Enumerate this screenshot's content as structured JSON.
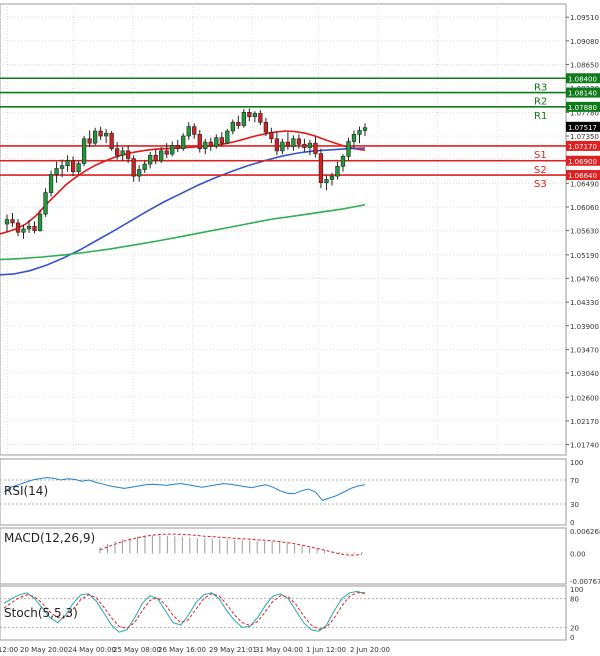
{
  "chart_data": {
    "type": "candlestick",
    "instrument_note": "",
    "colors": {
      "bull": "#1f9a3a",
      "bear": "#d42020",
      "ma_fast": "#e01818",
      "ma_mid": "#3553c8",
      "ma_slow": "#2fae52",
      "resistance": "#0f7a1a",
      "support": "#e02020",
      "rsi": "#1e7fd0",
      "macd_hist": "#9a9a9a",
      "macd_signal": "#e02020",
      "stoch_main": "#20a9b0",
      "stoch_signal": "#e02020",
      "grid": "#dcdcdc"
    },
    "price_axis": {
      "min": 1.0155,
      "max": 1.0975,
      "ticks": [
        "1.09510",
        "1.09080",
        "1.08650",
        "1.08220",
        "1.07780",
        "1.07350",
        "1.06920",
        "1.06490",
        "1.06060",
        "1.05630",
        "1.05190",
        "1.04760",
        "1.04330",
        "1.03900",
        "1.03470",
        "1.03040",
        "1.02600",
        "1.02170",
        "1.01740"
      ]
    },
    "time_axis": {
      "labels": [
        "12:00",
        "20 May 20:00",
        "24 May 00:00",
        "25 May 08:00",
        "26 May 16:00",
        "29 May 21:01",
        "31 May 04:00",
        "1 Jun 12:00",
        "2 Jun 20:00"
      ],
      "label_bars": [
        0,
        10,
        19,
        28,
        37,
        47,
        56,
        65,
        74
      ]
    },
    "levels": [
      {
        "name": "R3",
        "value": 1.084,
        "label": "1.08400",
        "type": "resistance"
      },
      {
        "name": "R2",
        "value": 1.0814,
        "label": "1.08140",
        "type": "resistance"
      },
      {
        "name": "R1",
        "value": 1.0788,
        "label": "1.07880",
        "type": "resistance"
      },
      {
        "name": "S1",
        "value": 1.0717,
        "label": "1.07170",
        "type": "support"
      },
      {
        "name": "S2",
        "value": 1.069,
        "label": "1.06900",
        "type": "support"
      },
      {
        "name": "S3",
        "value": 1.0664,
        "label": "1.06640",
        "type": "support"
      }
    ],
    "current_price": {
      "value": 1.07517,
      "label": "1.07517"
    },
    "candles": [
      [
        1.0575,
        1.0592,
        1.0561,
        1.0583
      ],
      [
        1.0583,
        1.0595,
        1.057,
        1.0577
      ],
      [
        1.0577,
        1.0584,
        1.0553,
        1.056
      ],
      [
        1.056,
        1.0573,
        1.0548,
        1.0566
      ],
      [
        1.0566,
        1.0582,
        1.0559,
        1.0571
      ],
      [
        1.0571,
        1.058,
        1.0558,
        1.0563
      ],
      [
        1.0563,
        1.0601,
        1.0561,
        1.0593
      ],
      [
        1.0593,
        1.064,
        1.0588,
        1.0632
      ],
      [
        1.0632,
        1.0672,
        1.0625,
        1.0665
      ],
      [
        1.0665,
        1.0688,
        1.065,
        1.0676
      ],
      [
        1.0676,
        1.0692,
        1.066,
        1.0681
      ],
      [
        1.0681,
        1.07,
        1.067,
        1.069
      ],
      [
        1.069,
        1.0698,
        1.0662,
        1.067
      ],
      [
        1.067,
        1.069,
        1.0664,
        1.0685
      ],
      [
        1.0685,
        1.0735,
        1.068,
        1.073
      ],
      [
        1.073,
        1.0745,
        1.0715,
        1.0722
      ],
      [
        1.0722,
        1.075,
        1.0718,
        1.0744
      ],
      [
        1.0744,
        1.0752,
        1.0728,
        1.0735
      ],
      [
        1.0735,
        1.0748,
        1.0722,
        1.074
      ],
      [
        1.074,
        1.0744,
        1.0708,
        1.0712
      ],
      [
        1.0712,
        1.0724,
        1.0692,
        1.07
      ],
      [
        1.07,
        1.0715,
        1.069,
        1.0708
      ],
      [
        1.0708,
        1.0718,
        1.0686,
        1.0694
      ],
      [
        1.0694,
        1.07,
        1.0652,
        1.0662
      ],
      [
        1.0662,
        1.0682,
        1.0652,
        1.0674
      ],
      [
        1.0674,
        1.069,
        1.0668,
        1.0684
      ],
      [
        1.0684,
        1.0706,
        1.0676,
        1.07
      ],
      [
        1.07,
        1.0712,
        1.0684,
        1.069
      ],
      [
        1.069,
        1.0715,
        1.0686,
        1.0708
      ],
      [
        1.0708,
        1.0722,
        1.0695,
        1.0702
      ],
      [
        1.0702,
        1.0725,
        1.0698,
        1.0718
      ],
      [
        1.0718,
        1.0728,
        1.0706,
        1.0712
      ],
      [
        1.0712,
        1.074,
        1.0708,
        1.0735
      ],
      [
        1.0735,
        1.076,
        1.0728,
        1.0752
      ],
      [
        1.0752,
        1.0758,
        1.073,
        1.0738
      ],
      [
        1.0738,
        1.0746,
        1.0705,
        1.0712
      ],
      [
        1.0712,
        1.073,
        1.0702,
        1.0724
      ],
      [
        1.0724,
        1.0732,
        1.0708,
        1.0716
      ],
      [
        1.0716,
        1.0738,
        1.0712,
        1.0732
      ],
      [
        1.0732,
        1.0742,
        1.0716,
        1.0722
      ],
      [
        1.0722,
        1.0748,
        1.072,
        1.0744
      ],
      [
        1.0744,
        1.0765,
        1.0738,
        1.076
      ],
      [
        1.076,
        1.0772,
        1.0748,
        1.0754
      ],
      [
        1.0754,
        1.0784,
        1.075,
        1.0778
      ],
      [
        1.0778,
        1.0785,
        1.0762,
        1.077
      ],
      [
        1.077,
        1.078,
        1.076,
        1.0776
      ],
      [
        1.0776,
        1.0782,
        1.0755,
        1.076
      ],
      [
        1.076,
        1.0768,
        1.0735,
        1.0742
      ],
      [
        1.0742,
        1.075,
        1.0722,
        1.073
      ],
      [
        1.073,
        1.0742,
        1.07,
        1.0708
      ],
      [
        1.0708,
        1.073,
        1.0702,
        1.0724
      ],
      [
        1.0724,
        1.0742,
        1.071,
        1.0716
      ],
      [
        1.0716,
        1.0736,
        1.0708,
        1.073
      ],
      [
        1.073,
        1.0738,
        1.0712,
        1.072
      ],
      [
        1.072,
        1.073,
        1.0706,
        1.0714
      ],
      [
        1.0714,
        1.0728,
        1.07,
        1.0722
      ],
      [
        1.0722,
        1.0734,
        1.0696,
        1.0703
      ],
      [
        1.0703,
        1.0712,
        1.064,
        1.065
      ],
      [
        1.065,
        1.0664,
        1.0636,
        1.0656
      ],
      [
        1.0656,
        1.0668,
        1.0645,
        1.0662
      ],
      [
        1.0662,
        1.0688,
        1.0656,
        1.068
      ],
      [
        1.068,
        1.0702,
        1.067,
        1.0698
      ],
      [
        1.0698,
        1.0732,
        1.069,
        1.0725
      ],
      [
        1.0725,
        1.0745,
        1.0712,
        1.0738
      ],
      [
        1.0738,
        1.0752,
        1.0722,
        1.0745
      ],
      [
        1.0745,
        1.0758,
        1.0735,
        1.075
      ]
    ],
    "moving_averages": [
      {
        "name": "",
        "color_key": "ma_fast",
        "window": 7,
        "values": [
          1.0555,
          1.056,
          1.0566,
          1.0575,
          1.059,
          1.061,
          1.0628,
          1.0646,
          1.066,
          1.0672,
          1.0682,
          1.069,
          1.0697,
          1.0702,
          1.0706,
          1.0709,
          1.0711,
          1.0712,
          1.0713,
          1.0714,
          1.0715,
          1.0716,
          1.0718,
          1.0721,
          1.0725,
          1.073,
          1.0735,
          1.0739,
          1.0742,
          1.0744,
          1.0743,
          1.074,
          1.0735,
          1.0728,
          1.0722,
          1.0716,
          1.0712,
          1.0709
        ]
      },
      {
        "name": "",
        "color_key": "ma_mid",
        "window": 14,
        "values": [
          1.0482,
          1.0484,
          1.049,
          1.05,
          1.0513,
          1.0528,
          1.0545,
          1.0562,
          1.058,
          1.0598,
          1.0615,
          1.063,
          1.0645,
          1.0658,
          1.067,
          1.0681,
          1.069,
          1.0698,
          1.0704,
          1.0708,
          1.071,
          1.0712,
          1.0713
        ]
      },
      {
        "name": "",
        "color_key": "ma_slow",
        "window": 21,
        "values": [
          1.051,
          1.0512,
          1.0515,
          1.0519,
          1.0524,
          1.053,
          1.0537,
          1.0544,
          1.0552,
          1.056,
          1.0568,
          1.0576,
          1.0584,
          1.059,
          1.0596,
          1.0602,
          1.061
        ]
      }
    ],
    "rsi": {
      "label": "RSI(14)",
      "ticks": [
        "100",
        "70",
        "30",
        "0"
      ],
      "values": [
        50,
        58,
        62,
        66,
        70,
        72,
        74,
        73,
        70,
        72,
        71,
        68,
        70,
        66,
        63,
        60,
        58,
        56,
        58,
        60,
        62,
        63,
        62,
        61,
        63,
        64,
        62,
        60,
        58,
        60,
        62,
        64,
        63,
        61,
        59,
        57,
        60,
        62,
        58,
        52,
        48,
        47,
        52,
        55,
        50,
        36,
        40,
        44,
        50,
        56,
        60,
        62
      ]
    },
    "macd": {
      "label": "MACD(12,26,9)",
      "ticks": [
        "0.006268",
        "0.00",
        "-0.007675"
      ],
      "hist": [
        0.0018,
        0.0026,
        0.0034,
        0.004,
        0.0044,
        0.0047,
        0.0049,
        0.005,
        0.005,
        0.0049,
        0.0048,
        0.0046,
        0.0044,
        0.0043,
        0.0042,
        0.0041,
        0.004,
        0.0039,
        0.0038,
        0.0037,
        0.0036,
        0.0035,
        0.0034,
        0.0033,
        0.0031,
        0.0028,
        0.0024,
        0.002,
        0.0016,
        0.0012,
        0.0009,
        0.0006,
        0.0004,
        0.0003,
        0.0003,
        0.0004
      ],
      "signal": [
        0.001,
        0.0018,
        0.0026,
        0.0033,
        0.0039,
        0.0044,
        0.0048,
        0.0051,
        0.0053,
        0.0054,
        0.0054,
        0.0053,
        0.0052,
        0.005,
        0.0048,
        0.0047,
        0.0045,
        0.0044,
        0.0042,
        0.0041,
        0.004,
        0.0038,
        0.0037,
        0.0035,
        0.0033,
        0.003,
        0.0027,
        0.0023,
        0.0019,
        0.0014,
        0.0009,
        0.0004,
        -0.0001,
        -0.0004,
        -0.0005,
        -0.0002
      ]
    },
    "stoch": {
      "label": "Stoch(5,5,3)",
      "ticks": [
        "100",
        "80",
        "20",
        "0"
      ],
      "main": [
        70,
        80,
        88,
        92,
        80,
        60,
        40,
        30,
        45,
        70,
        88,
        90,
        75,
        50,
        25,
        10,
        15,
        40,
        70,
        86,
        80,
        55,
        30,
        25,
        45,
        72,
        88,
        92,
        80,
        55,
        35,
        20,
        22,
        40,
        65,
        85,
        90,
        80,
        55,
        30,
        15,
        12,
        25,
        55,
        80,
        92,
        95,
        90
      ],
      "signal": [
        60,
        72,
        82,
        88,
        84,
        70,
        52,
        40,
        40,
        58,
        78,
        88,
        82,
        62,
        40,
        22,
        18,
        30,
        55,
        76,
        82,
        68,
        45,
        30,
        36,
        58,
        80,
        90,
        86,
        68,
        46,
        30,
        24,
        32,
        52,
        74,
        86,
        84,
        68,
        44,
        25,
        16,
        20,
        40,
        65,
        85,
        92,
        92
      ]
    }
  }
}
